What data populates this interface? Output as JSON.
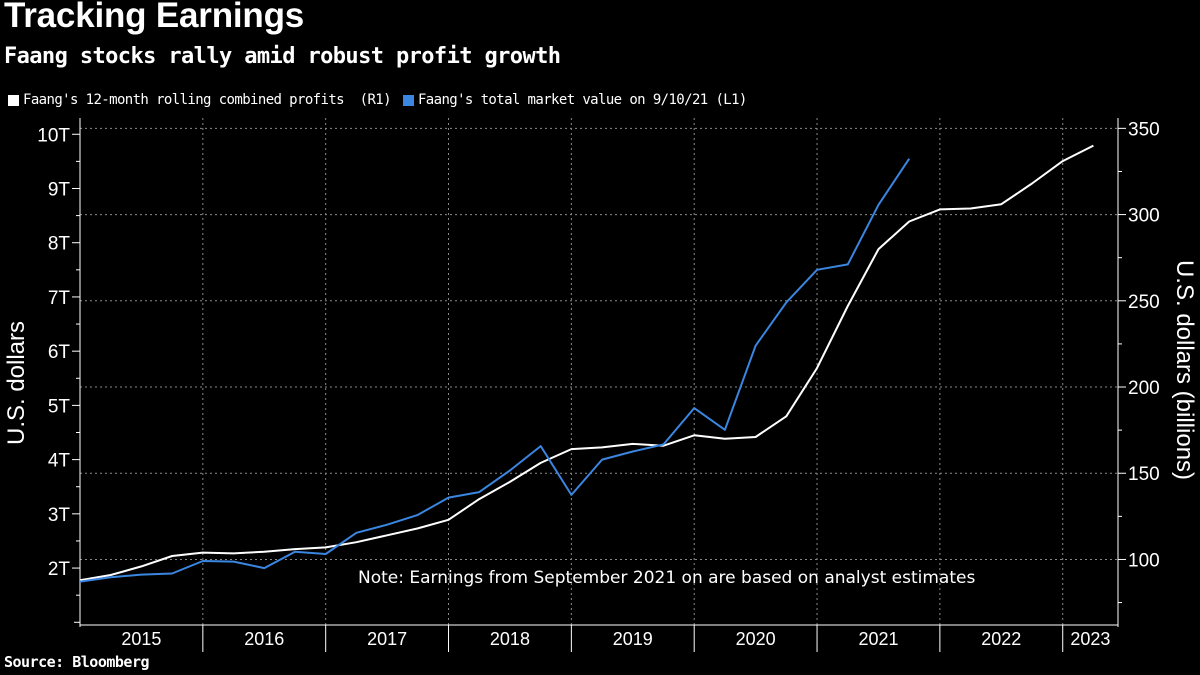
{
  "title": "Tracking Earnings",
  "subtitle": "Faang stocks rally amid robust profit growth",
  "source": "Source: Bloomberg",
  "colors": {
    "white_series": "#ffffff",
    "blue_series": "#3a86e0",
    "grid": "#8a8a8a",
    "background": "#000000"
  },
  "chart_data": {
    "type": "line",
    "note": "Note: Earnings from September 2021 on are based on analyst estimates",
    "left_axis": {
      "label": "U.S. dollars",
      "ylim": [
        0.95,
        10.3
      ],
      "ticks": [
        {
          "value": 2,
          "label": "2T"
        },
        {
          "value": 3,
          "label": "3T"
        },
        {
          "value": 4,
          "label": "4T"
        },
        {
          "value": 5,
          "label": "5T"
        },
        {
          "value": 6,
          "label": "6T"
        },
        {
          "value": 7,
          "label": "7T"
        },
        {
          "value": 8,
          "label": "8T"
        },
        {
          "value": 9,
          "label": "9T"
        },
        {
          "value": 10,
          "label": "10T"
        }
      ]
    },
    "right_axis": {
      "label": "U.S. dollars (billions)",
      "ylim": [
        62,
        356
      ],
      "ticks": [
        {
          "value": 100,
          "label": "100"
        },
        {
          "value": 150,
          "label": "150"
        },
        {
          "value": 200,
          "label": "200"
        },
        {
          "value": 250,
          "label": "250"
        },
        {
          "value": 300,
          "label": "300"
        },
        {
          "value": 350,
          "label": "350"
        }
      ]
    },
    "x_axis": {
      "xlim": [
        2015.0,
        2023.45
      ],
      "years": [
        {
          "label": "2015",
          "start": 2015,
          "end": 2016
        },
        {
          "label": "2016",
          "start": 2016,
          "end": 2017
        },
        {
          "label": "2017",
          "start": 2017,
          "end": 2018
        },
        {
          "label": "2018",
          "start": 2018,
          "end": 2019
        },
        {
          "label": "2019",
          "start": 2019,
          "end": 2020
        },
        {
          "label": "2020",
          "start": 2020,
          "end": 2021
        },
        {
          "label": "2021",
          "start": 2021,
          "end": 2022
        },
        {
          "label": "2022",
          "start": 2022,
          "end": 2023
        },
        {
          "label": "2023",
          "start": 2023,
          "end": 2023.45
        }
      ]
    },
    "series": [
      {
        "name": "Faang's 12-month rolling combined profits  (R1)",
        "axis": "right",
        "color": "#ffffff",
        "x": [
          2015.0,
          2015.25,
          2015.5,
          2015.75,
          2016.0,
          2016.25,
          2016.5,
          2016.75,
          2017.0,
          2017.25,
          2017.5,
          2017.75,
          2018.0,
          2018.25,
          2018.5,
          2018.75,
          2019.0,
          2019.25,
          2019.5,
          2019.75,
          2020.0,
          2020.25,
          2020.5,
          2020.75,
          2021.0,
          2021.25,
          2021.5,
          2021.75,
          2022.0,
          2022.25,
          2022.5,
          2022.75,
          2023.0,
          2023.25
        ],
        "y": [
          88,
          91,
          96,
          102,
          104,
          103.5,
          104.5,
          106,
          107,
          110,
          114,
          118,
          123,
          135,
          145,
          156,
          164,
          165,
          167,
          166,
          172,
          170,
          171,
          183,
          211,
          247,
          280,
          296,
          303,
          303.5,
          306,
          318,
          331,
          340
        ]
      },
      {
        "name": "Faang's total market value on 9/10/21 (L1)",
        "axis": "left",
        "color": "#3a86e0",
        "x": [
          2015.0,
          2015.25,
          2015.5,
          2015.75,
          2016.0,
          2016.25,
          2016.5,
          2016.75,
          2017.0,
          2017.25,
          2017.5,
          2017.75,
          2018.0,
          2018.25,
          2018.5,
          2018.75,
          2019.0,
          2019.25,
          2019.5,
          2019.75,
          2020.0,
          2020.25,
          2020.5,
          2020.75,
          2021.0,
          2021.25,
          2021.5,
          2021.75
        ],
        "y": [
          1.75,
          1.83,
          1.88,
          1.9,
          2.13,
          2.12,
          2.0,
          2.3,
          2.26,
          2.65,
          2.8,
          2.98,
          3.3,
          3.4,
          3.8,
          4.25,
          3.35,
          4.0,
          4.15,
          4.28,
          4.95,
          4.55,
          6.1,
          6.9,
          7.5,
          7.6,
          8.7,
          9.55
        ]
      }
    ]
  }
}
